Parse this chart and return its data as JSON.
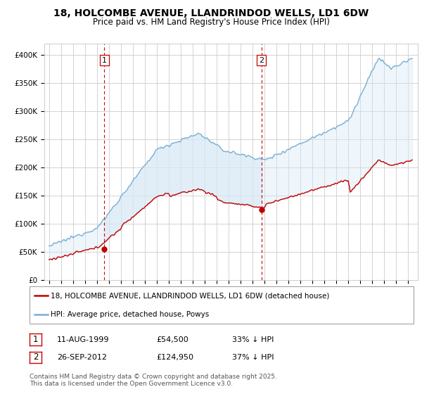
{
  "title": "18, HOLCOMBE AVENUE, LLANDRINDOD WELLS, LD1 6DW",
  "subtitle": "Price paid vs. HM Land Registry's House Price Index (HPI)",
  "ylim": [
    0,
    420000
  ],
  "purchase1_date": 1999.61,
  "purchase1_price": 54500,
  "purchase1_label": "1",
  "purchase2_date": 2012.73,
  "purchase2_price": 124950,
  "purchase2_label": "2",
  "hpi_color": "#7aafd4",
  "hpi_fill_color": "#d6e8f5",
  "price_color": "#c00000",
  "vline_color": "#cc0000",
  "grid_color": "#cccccc",
  "bg_color": "#ffffff",
  "legend_entry1": "18, HOLCOMBE AVENUE, LLANDRINDOD WELLS, LD1 6DW (detached house)",
  "legend_entry2": "HPI: Average price, detached house, Powys",
  "table_row1": [
    "1",
    "11-AUG-1999",
    "£54,500",
    "33% ↓ HPI"
  ],
  "table_row2": [
    "2",
    "26-SEP-2012",
    "£124,950",
    "37% ↓ HPI"
  ],
  "footer": "Contains HM Land Registry data © Crown copyright and database right 2025.\nThis data is licensed under the Open Government Licence v3.0.",
  "title_fontsize": 10,
  "subtitle_fontsize": 8.5,
  "tick_fontsize": 7.5,
  "legend_fontsize": 7.5,
  "table_fontsize": 8,
  "footer_fontsize": 6.5
}
